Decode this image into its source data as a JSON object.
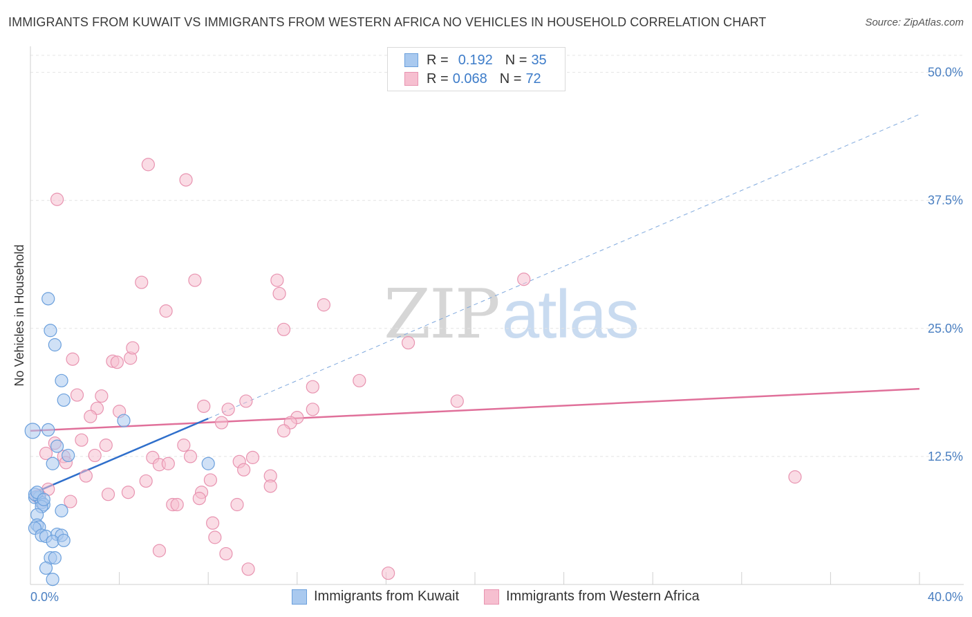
{
  "title": "IMMIGRANTS FROM KUWAIT VS IMMIGRANTS FROM WESTERN AFRICA NO VEHICLES IN HOUSEHOLD CORRELATION CHART",
  "source": "Source: ZipAtlas.com",
  "watermark": {
    "zip": "ZIP",
    "atlas": "atlas"
  },
  "legend": {
    "kuwait": {
      "r_label": "R =",
      "r_value": "0.192",
      "n_label": "N =",
      "n_value": "35"
    },
    "wafrica": {
      "r_label": "R =",
      "r_value": "0.068",
      "n_label": "N =",
      "n_value": "72"
    }
  },
  "colors": {
    "kuwait_fill": "#a9c9ef",
    "kuwait_stroke": "#6a9fdc",
    "kuwait_line": "#2f6fcb",
    "wafrica_fill": "#f6bfd0",
    "wafrica_stroke": "#e893b0",
    "wafrica_line": "#e0709a",
    "tick_text": "#4a7fc1",
    "grid": "#e4e4e4"
  },
  "chart_data": {
    "type": "scatter",
    "title": "IMMIGRANTS FROM KUWAIT VS IMMIGRANTS FROM WESTERN AFRICA NO VEHICLES IN HOUSEHOLD CORRELATION CHART",
    "xlabel": "",
    "ylabel": "No Vehicles in Household",
    "xlim": [
      0,
      40
    ],
    "ylim": [
      0,
      52
    ],
    "x_tick_labels": [
      "0.0%",
      "40.0%"
    ],
    "y_ticks": [
      12.5,
      25.0,
      37.5,
      50.0
    ],
    "y_tick_labels": [
      "12.5%",
      "25.0%",
      "37.5%",
      "50.0%"
    ],
    "grid": true,
    "legend_position": "top-center",
    "series": [
      {
        "name": "Immigrants from Kuwait",
        "points": [
          [
            0.1,
            15.0
          ],
          [
            0.8,
            27.9
          ],
          [
            0.9,
            24.8
          ],
          [
            1.1,
            23.4
          ],
          [
            1.4,
            19.9
          ],
          [
            1.5,
            18.0
          ],
          [
            4.2,
            16.0
          ],
          [
            0.8,
            15.1
          ],
          [
            1.2,
            13.5
          ],
          [
            1.7,
            12.6
          ],
          [
            1.0,
            11.8
          ],
          [
            8.0,
            11.8
          ],
          [
            0.2,
            8.5
          ],
          [
            0.4,
            8.5
          ],
          [
            0.5,
            8.0
          ],
          [
            0.6,
            7.8
          ],
          [
            0.5,
            7.6
          ],
          [
            1.4,
            7.2
          ],
          [
            0.3,
            6.8
          ],
          [
            0.3,
            5.8
          ],
          [
            0.4,
            5.6
          ],
          [
            0.2,
            5.5
          ],
          [
            0.5,
            4.8
          ],
          [
            0.7,
            4.7
          ],
          [
            1.2,
            4.9
          ],
          [
            1.4,
            4.8
          ],
          [
            1.0,
            4.2
          ],
          [
            1.5,
            4.3
          ],
          [
            0.9,
            2.6
          ],
          [
            1.1,
            2.6
          ],
          [
            0.7,
            1.6
          ],
          [
            1.0,
            0.5
          ],
          [
            0.2,
            8.8
          ],
          [
            0.3,
            9.0
          ],
          [
            0.6,
            8.3
          ]
        ],
        "trend": {
          "x": [
            0.0,
            8.0
          ],
          "y": [
            8.8,
            16.2
          ]
        },
        "trend_extension": {
          "x": [
            8.0,
            40.0
          ],
          "y": [
            16.2,
            45.9
          ]
        }
      },
      {
        "name": "Immigrants from Western Africa",
        "points": [
          [
            5.3,
            41.0
          ],
          [
            7.0,
            39.5
          ],
          [
            1.2,
            37.6
          ],
          [
            5.0,
            29.5
          ],
          [
            7.4,
            29.7
          ],
          [
            11.1,
            29.7
          ],
          [
            22.2,
            29.8
          ],
          [
            11.2,
            28.4
          ],
          [
            13.2,
            27.3
          ],
          [
            6.1,
            26.7
          ],
          [
            11.4,
            24.9
          ],
          [
            17.0,
            23.6
          ],
          [
            1.9,
            22.0
          ],
          [
            3.7,
            21.8
          ],
          [
            3.9,
            21.7
          ],
          [
            4.5,
            22.1
          ],
          [
            4.6,
            23.1
          ],
          [
            14.8,
            19.9
          ],
          [
            12.7,
            19.3
          ],
          [
            2.1,
            18.5
          ],
          [
            3.2,
            18.4
          ],
          [
            19.2,
            17.9
          ],
          [
            9.7,
            17.9
          ],
          [
            7.8,
            17.4
          ],
          [
            3.0,
            17.2
          ],
          [
            8.9,
            17.1
          ],
          [
            4.0,
            16.9
          ],
          [
            12.7,
            17.1
          ],
          [
            2.7,
            16.4
          ],
          [
            12.0,
            16.3
          ],
          [
            11.7,
            15.8
          ],
          [
            8.6,
            15.8
          ],
          [
            11.4,
            15.0
          ],
          [
            2.3,
            14.1
          ],
          [
            1.1,
            13.8
          ],
          [
            3.4,
            13.6
          ],
          [
            6.9,
            13.6
          ],
          [
            0.7,
            12.8
          ],
          [
            1.5,
            12.5
          ],
          [
            2.9,
            12.6
          ],
          [
            5.5,
            12.4
          ],
          [
            7.2,
            12.5
          ],
          [
            10.0,
            12.4
          ],
          [
            5.8,
            11.7
          ],
          [
            6.2,
            11.8
          ],
          [
            9.4,
            12.0
          ],
          [
            1.6,
            11.9
          ],
          [
            9.6,
            11.2
          ],
          [
            2.5,
            10.6
          ],
          [
            10.8,
            10.6
          ],
          [
            8.1,
            10.2
          ],
          [
            5.2,
            10.1
          ],
          [
            34.4,
            10.5
          ],
          [
            10.8,
            9.6
          ],
          [
            0.8,
            9.3
          ],
          [
            3.5,
            8.8
          ],
          [
            4.4,
            9.0
          ],
          [
            7.7,
            9.0
          ],
          [
            0.3,
            8.6
          ],
          [
            1.8,
            8.1
          ],
          [
            7.6,
            8.4
          ],
          [
            6.4,
            7.8
          ],
          [
            6.6,
            7.8
          ],
          [
            0.5,
            8.0
          ],
          [
            9.3,
            7.8
          ],
          [
            8.2,
            6.0
          ],
          [
            8.3,
            4.6
          ],
          [
            8.8,
            3.0
          ],
          [
            5.8,
            3.3
          ],
          [
            9.8,
            1.5
          ],
          [
            16.1,
            1.1
          ],
          [
            0.4,
            8.7
          ]
        ],
        "trend": {
          "x": [
            0.0,
            40.0
          ],
          "y": [
            15.0,
            19.1
          ]
        }
      }
    ]
  }
}
